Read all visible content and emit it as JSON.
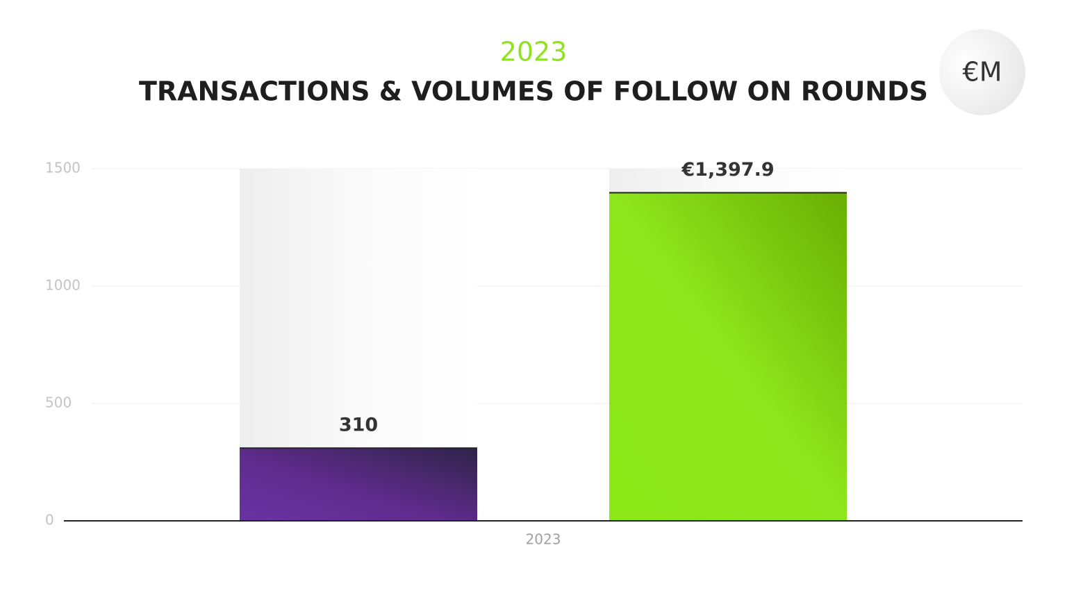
{
  "chart_data": {
    "type": "bar",
    "subtitle": "2023",
    "title": "TRANSACTIONS & VOLUMES OF FOLLOW ON ROUNDS",
    "unit_badge": "€M",
    "categories": [
      "2023"
    ],
    "series": [
      {
        "color": "#5e2d8f",
        "values": [
          310
        ]
      },
      {
        "color": "#86e019",
        "values": [
          1397.9
        ],
        "value_labels": [
          "€1,397.9"
        ]
      }
    ],
    "ylim": [
      0,
      1500
    ],
    "yticks": [
      0,
      500,
      1000,
      1500
    ],
    "grid": true
  }
}
